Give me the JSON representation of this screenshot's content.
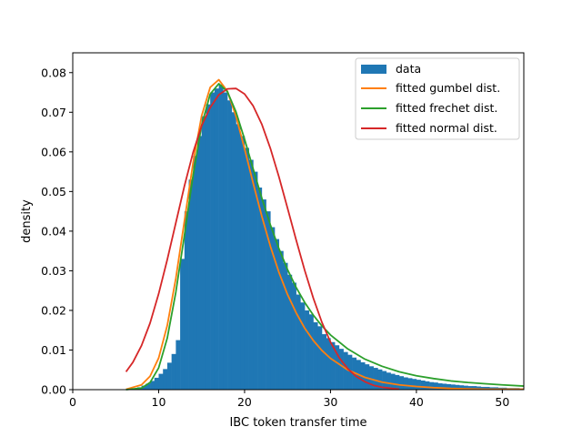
{
  "chart_data": {
    "type": "bar",
    "subtype": "histogram-with-fitted-curves",
    "title": "",
    "xlabel": "IBC token transfer time",
    "ylabel": "density",
    "xlim": [
      0,
      52.5
    ],
    "ylim": [
      0,
      0.085
    ],
    "xticks": [
      0,
      10,
      20,
      30,
      40,
      50
    ],
    "xtick_labels": [
      "0",
      "10",
      "20",
      "30",
      "40",
      "50"
    ],
    "yticks": [
      0,
      0.01,
      0.02,
      0.03,
      0.04,
      0.05,
      0.06,
      0.07,
      0.08
    ],
    "ytick_labels": [
      "0.00",
      "0.01",
      "0.02",
      "0.03",
      "0.04",
      "0.05",
      "0.06",
      "0.07",
      "0.08"
    ],
    "grid": false,
    "legend_position": "top-right",
    "histogram": {
      "name": "data",
      "color": "#1f77b4",
      "bin_edges_start": 6,
      "bin_width": 0.5,
      "density": [
        0,
        0,
        0.0003,
        0.0006,
        0.001,
        0.0015,
        0.0022,
        0.003,
        0.004,
        0.0052,
        0.0068,
        0.009,
        0.0125,
        0.033,
        0.045,
        0.053,
        0.059,
        0.064,
        0.069,
        0.072,
        0.075,
        0.076,
        0.077,
        0.075,
        0.073,
        0.07,
        0.067,
        0.064,
        0.061,
        0.058,
        0.055,
        0.051,
        0.048,
        0.045,
        0.041,
        0.038,
        0.035,
        0.032,
        0.029,
        0.027,
        0.024,
        0.022,
        0.02,
        0.019,
        0.017,
        0.016,
        0.014,
        0.013,
        0.012,
        0.0112,
        0.0103,
        0.0095,
        0.0088,
        0.0081,
        0.0075,
        0.0069,
        0.0064,
        0.0059,
        0.0055,
        0.0051,
        0.0047,
        0.0043,
        0.004,
        0.0037,
        0.0034,
        0.0031,
        0.0029,
        0.0027,
        0.0025,
        0.0023,
        0.0021,
        0.0019,
        0.0018,
        0.0016,
        0.0015,
        0.0014,
        0.0013,
        0.0012,
        0.0011,
        0.001,
        0.0009,
        0.0009,
        0.0008,
        0.0007,
        0.0007,
        0.0006,
        0.0006,
        0.0005,
        0.0005,
        0.0004,
        0.0004,
        0.0004,
        0.0003
      ]
    },
    "series": [
      {
        "name": "fitted gumbel dist.",
        "color": "#ff7f0e",
        "x": [
          6.2,
          8,
          9,
          10,
          11,
          12,
          13,
          14,
          15,
          16,
          17,
          18,
          19,
          20,
          21,
          22,
          23,
          24,
          25,
          26,
          27,
          28,
          29,
          30,
          32,
          34,
          36,
          38,
          40,
          42,
          44,
          46,
          48,
          50,
          52.5
        ],
        "y": [
          0.0001,
          0.0012,
          0.0034,
          0.008,
          0.0162,
          0.0281,
          0.0426,
          0.0572,
          0.0691,
          0.0763,
          0.0782,
          0.0753,
          0.069,
          0.0608,
          0.0521,
          0.0438,
          0.0362,
          0.0296,
          0.024,
          0.0194,
          0.0155,
          0.0124,
          0.0099,
          0.0079,
          0.005,
          0.0031,
          0.0019,
          0.0012,
          0.0008,
          0.0005,
          0.0003,
          0.0002,
          0.0001,
          0.0001,
          0.0001
        ]
      },
      {
        "name": "fitted frechet dist.",
        "color": "#2ca02c",
        "x": [
          6.2,
          8,
          9,
          10,
          11,
          12,
          13,
          14,
          15,
          16,
          17,
          18,
          19,
          20,
          21,
          22,
          23,
          24,
          25,
          26,
          27,
          28,
          29,
          30,
          32,
          34,
          36,
          38,
          40,
          42,
          44,
          46,
          48,
          50,
          52.5
        ],
        "y": [
          0,
          0.0004,
          0.0018,
          0.0055,
          0.013,
          0.0246,
          0.039,
          0.054,
          0.0667,
          0.0746,
          0.0772,
          0.0752,
          0.0701,
          0.0632,
          0.0557,
          0.0484,
          0.0416,
          0.0356,
          0.0303,
          0.0258,
          0.022,
          0.0188,
          0.0161,
          0.0138,
          0.0103,
          0.0077,
          0.0059,
          0.0045,
          0.0035,
          0.0028,
          0.0022,
          0.0018,
          0.0015,
          0.0012,
          0.0009
        ]
      },
      {
        "name": "fitted normal dist.",
        "color": "#d62728",
        "x": [
          6.2,
          7,
          8,
          9,
          10,
          11,
          12,
          13,
          14,
          15,
          16,
          17,
          18,
          19,
          20,
          21,
          22,
          23,
          24,
          25,
          26,
          27,
          28,
          29,
          30,
          31,
          32,
          33,
          34,
          35,
          36,
          38
        ],
        "y": [
          0.0045,
          0.0069,
          0.0111,
          0.0168,
          0.0242,
          0.0328,
          0.0421,
          0.0514,
          0.0598,
          0.0666,
          0.0712,
          0.0744,
          0.0759,
          0.076,
          0.0746,
          0.0716,
          0.067,
          0.0609,
          0.0537,
          0.0458,
          0.0378,
          0.0301,
          0.0231,
          0.017,
          0.012,
          0.0081,
          0.0053,
          0.0033,
          0.002,
          0.0011,
          0.0006,
          0.0001
        ]
      }
    ]
  }
}
